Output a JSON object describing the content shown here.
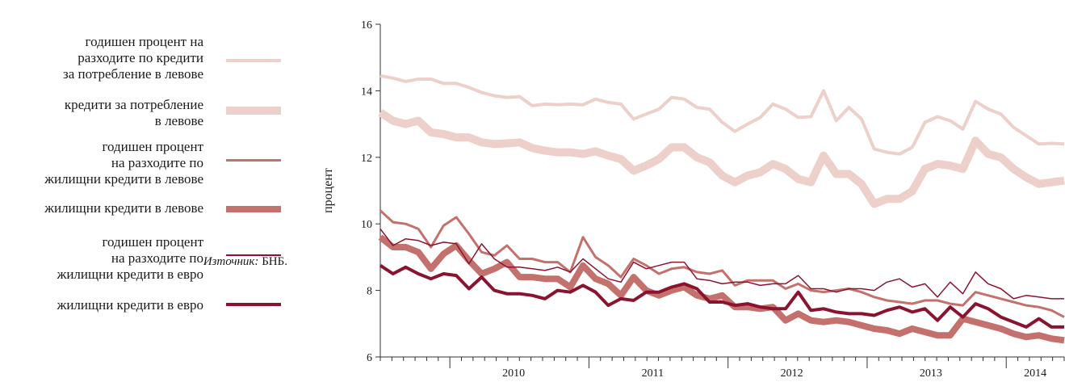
{
  "legend": {
    "items": [
      {
        "lines": [
          "годишен процент на",
          "разходите по кредити",
          "за потребление в левове"
        ],
        "color": "#edd0ca",
        "width": 4
      },
      {
        "lines": [
          "кредити за потребление",
          "в левове"
        ],
        "color": "#edd0ca",
        "width": 10
      },
      {
        "lines": [
          "годишен процент",
          "на разходите по",
          "жилищни кредити в левове"
        ],
        "color": "#c4706c",
        "width": 3
      },
      {
        "lines": [
          "жилищни кредити в левове"
        ],
        "color": "#c4706c",
        "width": 8
      },
      {
        "lines": [
          "годишен процент",
          "на разходите по",
          "жилищни кредити в евро"
        ],
        "color": "#8a1430",
        "width": 1.5
      },
      {
        "lines": [
          "жилищни кредити в евро"
        ],
        "color": "#8a1430",
        "width": 4
      }
    ]
  },
  "source": {
    "label": "Източник:",
    "value": "БНБ."
  },
  "chart_data": {
    "type": "line",
    "ylabel": "процент",
    "ylim": [
      6,
      16
    ],
    "yticks": [
      "6",
      "8",
      "10",
      "12",
      "14",
      "16"
    ],
    "x_start": "2009-07",
    "x_end": "2014-06",
    "years": [
      "2010",
      "2011",
      "2012",
      "2013",
      "2014"
    ],
    "series": [
      {
        "name": "годишен процент на разходите по кредити за потребление в левове",
        "color": "#edd0ca",
        "width": 4,
        "values": [
          14.45,
          14.38,
          14.28,
          14.35,
          14.35,
          14.22,
          14.22,
          14.1,
          13.95,
          13.85,
          13.8,
          13.82,
          13.55,
          13.6,
          13.58,
          13.6,
          13.58,
          13.75,
          13.65,
          13.6,
          13.15,
          13.3,
          13.45,
          13.8,
          13.75,
          13.5,
          13.45,
          13.05,
          12.78,
          13.0,
          13.2,
          13.6,
          13.45,
          13.2,
          13.22,
          14.0,
          13.1,
          13.5,
          13.15,
          12.25,
          12.15,
          12.1,
          12.3,
          13.05,
          13.22,
          13.1,
          12.85,
          13.68,
          13.45,
          13.3,
          12.9,
          12.65,
          12.4,
          12.42,
          12.4
        ]
      },
      {
        "name": "кредити за потребление в левове",
        "color": "#edd0ca",
        "width": 10,
        "values": [
          13.35,
          13.1,
          13.0,
          13.1,
          12.75,
          12.7,
          12.6,
          12.6,
          12.45,
          12.4,
          12.42,
          12.45,
          12.28,
          12.2,
          12.15,
          12.15,
          12.1,
          12.18,
          12.05,
          11.95,
          11.6,
          11.75,
          11.95,
          12.3,
          12.3,
          12.0,
          11.85,
          11.45,
          11.25,
          11.45,
          11.55,
          11.8,
          11.65,
          11.35,
          11.25,
          12.05,
          11.5,
          11.5,
          11.2,
          10.6,
          10.75,
          10.75,
          10.98,
          11.65,
          11.8,
          11.75,
          11.65,
          12.5,
          12.1,
          12.0,
          11.65,
          11.4,
          11.2,
          11.25,
          11.3
        ]
      },
      {
        "name": "годишен процент на разходите по жилищни кредити в левове",
        "color": "#c4706c",
        "width": 3,
        "values": [
          10.4,
          10.05,
          10.0,
          9.85,
          9.3,
          9.95,
          10.2,
          9.7,
          9.15,
          9.05,
          9.35,
          8.95,
          8.95,
          8.85,
          8.85,
          8.55,
          9.6,
          9.0,
          8.75,
          8.4,
          8.95,
          8.75,
          8.5,
          8.65,
          8.7,
          8.55,
          8.5,
          8.6,
          8.15,
          8.3,
          8.3,
          8.3,
          8.05,
          8.2,
          8.0,
          7.95,
          8.0,
          8.05,
          7.95,
          7.8,
          7.7,
          7.65,
          7.6,
          7.7,
          7.7,
          7.6,
          7.55,
          7.95,
          7.85,
          7.75,
          7.65,
          7.55,
          7.5,
          7.4,
          7.2
        ]
      },
      {
        "name": "жилищни кредити в левове",
        "color": "#c4706c",
        "width": 8,
        "values": [
          9.6,
          9.3,
          9.3,
          9.15,
          8.65,
          9.1,
          9.35,
          8.9,
          8.5,
          8.65,
          8.85,
          8.4,
          8.4,
          8.35,
          8.35,
          8.1,
          8.75,
          8.35,
          8.2,
          7.85,
          8.4,
          8.0,
          7.85,
          8.0,
          8.1,
          7.85,
          7.75,
          7.85,
          7.5,
          7.5,
          7.45,
          7.5,
          7.1,
          7.3,
          7.1,
          7.05,
          7.1,
          7.05,
          6.95,
          6.85,
          6.8,
          6.7,
          6.85,
          6.75,
          6.65,
          6.65,
          7.15,
          7.05,
          6.95,
          6.85,
          6.7,
          6.6,
          6.65,
          6.55,
          6.5
        ]
      },
      {
        "name": "годишен процент на разходите по жилищни кредити в евро",
        "color": "#8a1430",
        "width": 1.5,
        "values": [
          9.85,
          9.35,
          9.55,
          9.5,
          9.35,
          9.45,
          9.4,
          8.8,
          9.4,
          8.95,
          8.7,
          8.7,
          8.65,
          8.6,
          8.7,
          8.55,
          8.95,
          8.65,
          8.35,
          8.25,
          8.85,
          8.65,
          8.75,
          8.85,
          8.85,
          8.35,
          8.3,
          8.2,
          8.25,
          8.25,
          8.15,
          8.2,
          8.2,
          8.45,
          8.05,
          8.05,
          7.95,
          8.05,
          8.05,
          8.0,
          8.25,
          8.35,
          8.1,
          8.2,
          7.8,
          8.25,
          7.9,
          8.55,
          8.2,
          8.05,
          7.75,
          7.85,
          7.8,
          7.75,
          7.75
        ]
      },
      {
        "name": "жилищни кредити в евро",
        "color": "#8a1430",
        "width": 4,
        "values": [
          8.75,
          8.5,
          8.7,
          8.5,
          8.35,
          8.5,
          8.45,
          8.05,
          8.4,
          8.0,
          7.9,
          7.9,
          7.85,
          7.75,
          8.0,
          7.95,
          8.15,
          7.95,
          7.55,
          7.75,
          7.7,
          7.95,
          7.95,
          8.1,
          8.2,
          8.05,
          7.65,
          7.65,
          7.55,
          7.6,
          7.5,
          7.45,
          7.45,
          7.95,
          7.4,
          7.45,
          7.35,
          7.3,
          7.3,
          7.25,
          7.4,
          7.5,
          7.35,
          7.45,
          7.1,
          7.5,
          7.2,
          7.6,
          7.45,
          7.2,
          7.05,
          6.9,
          7.15,
          6.9,
          6.9
        ]
      }
    ]
  }
}
